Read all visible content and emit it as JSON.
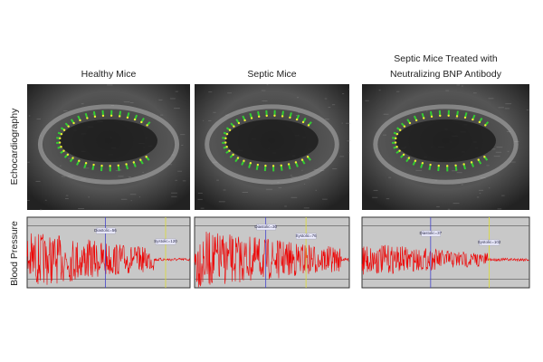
{
  "row_labels": [
    "Echocardiography",
    "Blood Pressure"
  ],
  "columns": [
    {
      "title_lines": [
        "Healthy Mice"
      ],
      "diastolic": "Diastolic=56",
      "systolic": "Systolic=120"
    },
    {
      "title_lines": [
        "Septic Mice"
      ],
      "diastolic": "Diastolic=30",
      "systolic": "Systolic=76"
    },
    {
      "title_lines": [
        "Septic Mice Treated with",
        "Neutralizing BNP Antibody"
      ],
      "diastolic": "Diastolic=37",
      "systolic": "Systolic=102"
    }
  ]
}
